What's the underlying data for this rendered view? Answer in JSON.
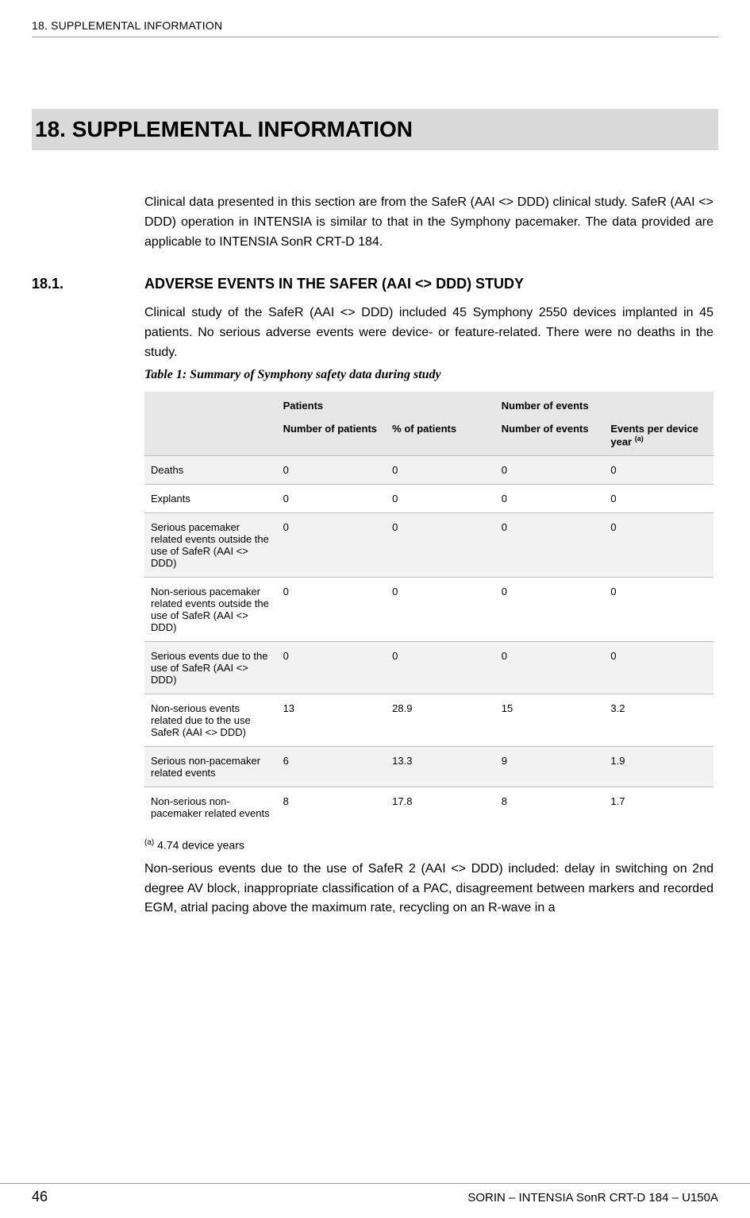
{
  "header": {
    "running": "18.  SUPPLEMENTAL INFORMATION"
  },
  "section": {
    "title": "18.  SUPPLEMENTAL INFORMATION",
    "intro": "Clinical data presented in this section are from the SafeR (AAI <> DDD) clinical study. SafeR (AAI <> DDD) operation in INTENSIA is similar to that in the Symphony pacemaker. The data provided are applicable to INTENSIA SonR CRT-D 184."
  },
  "subsection": {
    "number": "18.1.",
    "title": "ADVERSE EVENTS IN THE SAFER (AAI <> DDD) STUDY",
    "para": "Clinical study of the SafeR (AAI <> DDD) included 45 Symphony 2550 devices implanted in 45 patients. No serious adverse events were device- or feature-related. There were no deaths in the study."
  },
  "table": {
    "caption": "Table 1: Summary of Symphony safety data during study",
    "group_headers": {
      "blank": "",
      "patients": "Patients",
      "events": "Number of events"
    },
    "sub_headers": {
      "label": "",
      "num_patients": "Number of patients",
      "pct_patients": "% of patients",
      "num_events": "Number of events",
      "events_per_year": "Events per device year ",
      "events_per_year_note": "(a)"
    },
    "rows": [
      {
        "label": "Deaths",
        "num_patients": "0",
        "pct_patients": "0",
        "num_events": "0",
        "events_per_year": "0"
      },
      {
        "label": "Explants",
        "num_patients": "0",
        "pct_patients": "0",
        "num_events": "0",
        "events_per_year": "0"
      },
      {
        "label": "Serious pacemaker related events outside the use of SafeR (AAI <> DDD)",
        "num_patients": "0",
        "pct_patients": "0",
        "num_events": "0",
        "events_per_year": "0"
      },
      {
        "label": "Non-serious pacemaker related events outside the use of SafeR (AAI <> DDD)",
        "num_patients": "0",
        "pct_patients": "0",
        "num_events": "0",
        "events_per_year": "0"
      },
      {
        "label": "Serious events due to the use of SafeR (AAI <> DDD)",
        "num_patients": "0",
        "pct_patients": "0",
        "num_events": "0",
        "events_per_year": "0"
      },
      {
        "label": "Non-serious events related due to the use SafeR (AAI <> DDD)",
        "num_patients": "13",
        "pct_patients": "28.9",
        "num_events": "15",
        "events_per_year": "3.2"
      },
      {
        "label": "Serious non-pacemaker related events",
        "num_patients": "6",
        "pct_patients": "13.3",
        "num_events": "9",
        "events_per_year": "1.9"
      },
      {
        "label": "Non-serious non-pacemaker related events",
        "num_patients": "8",
        "pct_patients": "17.8",
        "num_events": "8",
        "events_per_year": "1.7"
      }
    ],
    "footnote_marker": "(a)",
    "footnote_text": " 4.74 device years"
  },
  "closing": "Non-serious events due to the use of SafeR 2 (AAI <> DDD) included: delay in switching on 2nd degree AV block, inappropriate classification of a PAC, disagreement between markers and recorded EGM, atrial pacing above the maximum rate, recycling on an R-wave in a",
  "footer": {
    "page": "46",
    "right": "SORIN – INTENSIA SonR CRT-D 184 – U150A"
  },
  "colors": {
    "title_bg": "#d9d9d9",
    "row_odd": "#f2f2f2",
    "row_even": "#ffffff",
    "header_bg": "#e6e6e6",
    "border": "#bdbdbd",
    "rule": "#999999",
    "text": "#000000"
  }
}
